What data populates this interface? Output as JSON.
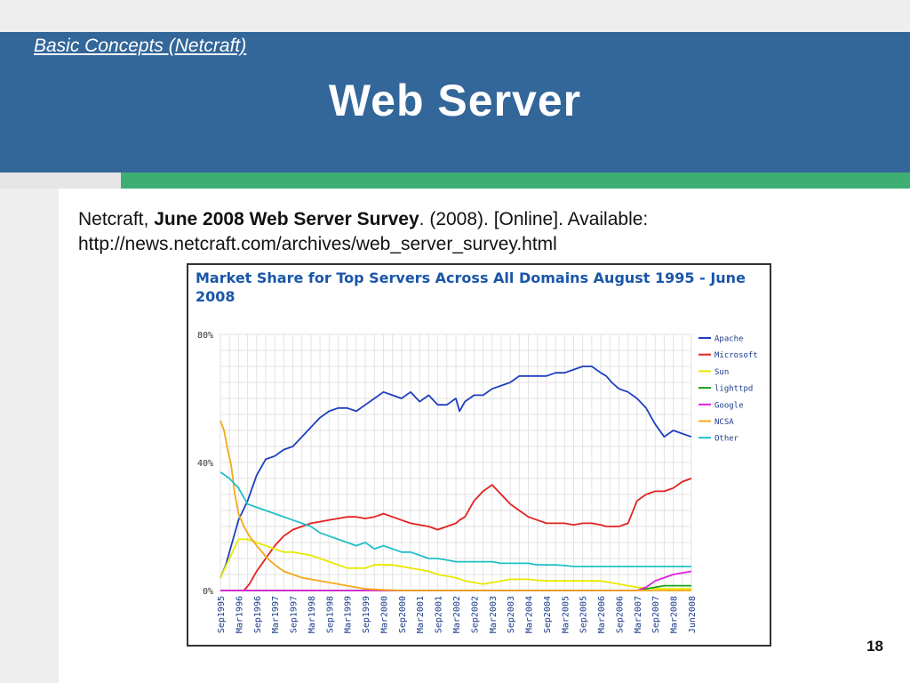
{
  "slide": {
    "subtitle": "Basic Concepts (Netcraft)",
    "title": "Web Server",
    "citation": {
      "prefix": "Netcraft, ",
      "bold": "June 2008 Web Server Survey",
      "suffix": ". (2008). [Online]. Available:",
      "url": "http://news.netcraft.com/archives/web_server_survey.html"
    },
    "slide_number": "18"
  },
  "colors": {
    "header": "#336699",
    "accent_green": "#3fae73"
  },
  "chart_data": {
    "type": "line",
    "title": "Market Share for Top Servers Across All Domains August 1995 - June 2008",
    "title_color": "#1a56a8",
    "ylim": [
      0,
      80
    ],
    "yticks": [
      {
        "value": 0,
        "label": "0%"
      },
      {
        "value": 40,
        "label": "40%"
      },
      {
        "value": 80,
        "label": "80%"
      }
    ],
    "xlim": [
      0,
      26
    ],
    "categories": [
      "Sep1995",
      "Mar1996",
      "Sep1996",
      "Mar1997",
      "Sep1997",
      "Mar1998",
      "Sep1998",
      "Mar1999",
      "Sep1999",
      "Mar2000",
      "Sep2000",
      "Mar2001",
      "Sep2001",
      "Mar2002",
      "Sep2002",
      "Mar2003",
      "Sep2003",
      "Mar2004",
      "Sep2004",
      "Mar2005",
      "Sep2005",
      "Mar2006",
      "Sep2006",
      "Mar2007",
      "Sep2007",
      "Mar2008",
      "Jun2008"
    ],
    "legend_position": "right",
    "grid": true,
    "series": [
      {
        "name": "Apache",
        "color": "#1f3fbf",
        "x": [
          0,
          0.3,
          0.6,
          1,
          1.5,
          2,
          2.5,
          3,
          3.5,
          4,
          4.5,
          5,
          5.5,
          6,
          6.5,
          7,
          7.5,
          8,
          8.5,
          9,
          9.5,
          10,
          10.5,
          11,
          11.5,
          12,
          12.5,
          13,
          13.2,
          13.5,
          14,
          14.5,
          15,
          15.5,
          16,
          16.5,
          17,
          17.5,
          18,
          18.5,
          19,
          19.5,
          20,
          20.5,
          21,
          21.3,
          21.6,
          22,
          22.5,
          23,
          23.5,
          24,
          24.5,
          25,
          25.5,
          26
        ],
        "y": [
          4,
          8,
          14,
          22,
          28,
          36,
          41,
          42,
          44,
          45,
          48,
          51,
          54,
          56,
          57,
          57,
          56,
          58,
          60,
          62,
          61,
          60,
          62,
          59,
          61,
          58,
          58,
          60,
          56,
          59,
          61,
          61,
          63,
          64,
          65,
          67,
          67,
          67,
          67,
          68,
          68,
          69,
          70,
          70,
          68,
          67,
          65,
          63,
          62,
          60,
          57,
          52,
          48,
          50,
          49,
          48
        ]
      },
      {
        "name": "Microsoft",
        "color": "#e32121",
        "x": [
          0,
          0.5,
          1,
          1.3,
          1.6,
          2,
          2.5,
          3,
          3.5,
          4,
          4.5,
          5,
          5.5,
          6,
          6.5,
          7,
          7.5,
          8,
          8.5,
          9,
          9.5,
          10,
          10.5,
          11,
          11.5,
          12,
          12.5,
          13,
          13.2,
          13.5,
          14,
          14.5,
          15,
          15.5,
          16,
          16.5,
          17,
          17.5,
          18,
          18.5,
          19,
          19.5,
          20,
          20.5,
          21,
          21.3,
          21.6,
          22,
          22.5,
          23,
          23.5,
          24,
          24.5,
          25,
          25.5,
          26
        ],
        "y": [
          0,
          0,
          0,
          0,
          2,
          6,
          10,
          14,
          17,
          19,
          20,
          21,
          21.5,
          22,
          22.5,
          23,
          23,
          22.5,
          23,
          24,
          23,
          22,
          21,
          20.5,
          20,
          19,
          20,
          21,
          22,
          23,
          28,
          31,
          33,
          30,
          27,
          25,
          23,
          22,
          21,
          21,
          21,
          20.5,
          21,
          21,
          20.5,
          20,
          20,
          20,
          21,
          28,
          30,
          31,
          31,
          32,
          34,
          35
        ]
      },
      {
        "name": "Sun",
        "color": "#e8e800",
        "x": [
          0,
          0.5,
          1,
          1.5,
          2,
          2.5,
          3,
          3.5,
          4,
          4.5,
          5,
          5.5,
          6,
          6.5,
          7,
          7.5,
          8,
          8.5,
          9,
          9.5,
          10,
          10.5,
          11,
          11.5,
          12,
          12.5,
          13,
          13.5,
          14,
          14.5,
          15,
          15.5,
          16,
          16.5,
          17,
          17.5,
          18,
          18.5,
          19,
          19.5,
          20,
          20.5,
          21,
          21.5,
          22,
          22.5,
          23,
          23.5,
          24,
          24.5,
          25,
          25.5,
          26
        ],
        "y": [
          4,
          10,
          16,
          16,
          15,
          14,
          13,
          12,
          12,
          11.5,
          11,
          10,
          9,
          8,
          7,
          7,
          7,
          8,
          8,
          8,
          7.5,
          7,
          6.5,
          6,
          5,
          4.5,
          4,
          3,
          2.5,
          2,
          2.5,
          3,
          3.5,
          3.5,
          3.5,
          3.2,
          3,
          3,
          3,
          3,
          3,
          3,
          3,
          2.5,
          2,
          1.5,
          1,
          0.8,
          0.6,
          0.5,
          0.5,
          0.5,
          0.5
        ]
      },
      {
        "name": "lighttpd",
        "color": "#1aa01a",
        "x": [
          0,
          21,
          21.5,
          22,
          22.5,
          23,
          23.5,
          24,
          24.5,
          25,
          25.5,
          26
        ],
        "y": [
          0,
          0,
          0,
          0,
          0,
          0,
          0.5,
          1,
          1.5,
          1.5,
          1.5,
          1.5
        ]
      },
      {
        "name": "Google",
        "color": "#e020e0",
        "x": [
          0,
          21,
          21.5,
          22,
          22.5,
          23,
          23.5,
          24,
          24.5,
          25,
          25.5,
          26
        ],
        "y": [
          0,
          0,
          0,
          0,
          0,
          0,
          1,
          3,
          4,
          5,
          5.5,
          6
        ]
      },
      {
        "name": "NCSA",
        "color": "#f5a81a",
        "x": [
          0,
          0.2,
          0.4,
          0.6,
          0.8,
          1,
          1.3,
          1.6,
          2,
          2.3,
          2.6,
          3,
          3.5,
          4,
          4.5,
          5,
          5.5,
          6,
          6.5,
          7,
          7.5,
          8,
          9,
          10,
          26
        ],
        "y": [
          53,
          50,
          44,
          39,
          30,
          24,
          20,
          17,
          14,
          12,
          10,
          8,
          6,
          5,
          4,
          3.5,
          3,
          2.5,
          2,
          1.5,
          1,
          0.5,
          0.2,
          0,
          0
        ]
      },
      {
        "name": "Other",
        "color": "#20c0c8",
        "x": [
          0,
          0.5,
          1,
          1.5,
          2,
          2.5,
          3,
          3.5,
          4,
          4.5,
          5,
          5.5,
          6,
          6.5,
          7,
          7.5,
          8,
          8.5,
          9,
          9.5,
          10,
          10.5,
          11,
          11.5,
          12,
          12.5,
          13,
          13.5,
          14,
          14.5,
          15,
          15.5,
          16,
          16.5,
          17,
          17.5,
          18,
          18.5,
          19,
          19.5,
          20,
          20.5,
          21,
          21.5,
          22,
          22.5,
          23,
          23.5,
          24,
          24.5,
          25,
          25.5,
          26
        ],
        "y": [
          37,
          35,
          32,
          27,
          26,
          25,
          24,
          23,
          22,
          21,
          20,
          18,
          17,
          16,
          15,
          14,
          15,
          13,
          14,
          13,
          12,
          12,
          11,
          10,
          10,
          9.5,
          9,
          9,
          9,
          9,
          9,
          8.5,
          8.5,
          8.5,
          8.5,
          8,
          8,
          8,
          7.8,
          7.5,
          7.5,
          7.5,
          7.5,
          7.5,
          7.5,
          7.5,
          7.5,
          7.5,
          7.5,
          7.5,
          7.5,
          7.5,
          7.5
        ]
      }
    ]
  }
}
